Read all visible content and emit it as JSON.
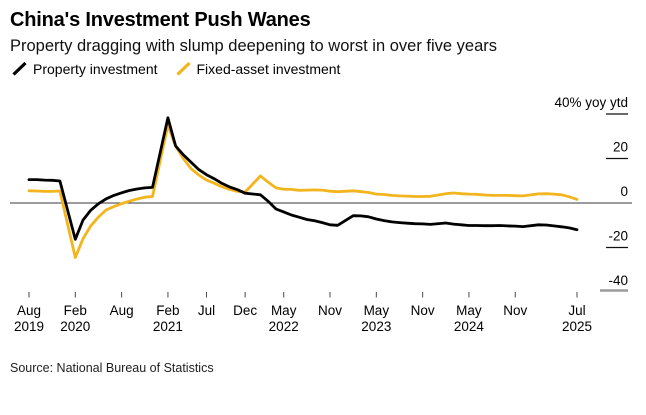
{
  "header": {
    "title": "China's Investment Push Wanes",
    "subtitle": "Property dragging with slump deepening to worst in over five years"
  },
  "legend": [
    {
      "label": "Property investment",
      "color": "#000000",
      "icon": "slash-line-icon"
    },
    {
      "label": "Fixed-asset investment",
      "color": "#F2B51D",
      "icon": "slash-line-icon"
    }
  ],
  "footer": {
    "source": "Source: National Bureau of Statistics"
  },
  "colors": {
    "series_black": "#000000",
    "series_yellow": "#F2B51D",
    "zero_axis": "#3a3a3a",
    "tick_black": "#111111",
    "tick_gray": "#9b9b9b",
    "background": "#ffffff"
  },
  "chart_data": {
    "type": "line",
    "title": "China's Investment Push Wanes",
    "subtitle": "Property dragging with slump deepening to worst in over five years",
    "unit_label": "40% yoy ytd",
    "ylabel": "% yoy ytd",
    "xlabel": "",
    "ylim": [
      -45,
      45
    ],
    "grid": false,
    "legend_position": "top-left",
    "yticks": [
      {
        "value": 40,
        "label": "40% yoy ytd"
      },
      {
        "value": 20,
        "label": "20"
      },
      {
        "value": 0,
        "label": "0"
      },
      {
        "value": -20,
        "label": "-20"
      },
      {
        "value": -40,
        "label": "-40"
      }
    ],
    "xticks": [
      {
        "date": "Aug 2019",
        "month": "Aug",
        "year": "2019"
      },
      {
        "date": "Feb 2020",
        "month": "Feb",
        "year": "2020"
      },
      {
        "date": "Aug 2020",
        "month": "Aug",
        "year": ""
      },
      {
        "date": "Feb 2021",
        "month": "Feb",
        "year": "2021"
      },
      {
        "date": "Jul 2021",
        "month": "Jul",
        "year": ""
      },
      {
        "date": "Dec 2021",
        "month": "Dec",
        "year": ""
      },
      {
        "date": "May 2022",
        "month": "May",
        "year": "2022"
      },
      {
        "date": "Nov 2022",
        "month": "Nov",
        "year": ""
      },
      {
        "date": "May 2023",
        "month": "May",
        "year": "2023"
      },
      {
        "date": "Nov 2023",
        "month": "Nov",
        "year": ""
      },
      {
        "date": "May 2024",
        "month": "May",
        "year": "2024"
      },
      {
        "date": "Nov 2024",
        "month": "Nov",
        "year": ""
      },
      {
        "date": "Jul 2025",
        "month": "Jul",
        "year": "2025"
      }
    ],
    "x_dates": [
      "Aug 2019",
      "Sep 2019",
      "Oct 2019",
      "Nov 2019",
      "Dec 2019",
      "Feb 2020",
      "Mar 2020",
      "Apr 2020",
      "May 2020",
      "Jun 2020",
      "Jul 2020",
      "Aug 2020",
      "Sep 2020",
      "Oct 2020",
      "Nov 2020",
      "Dec 2020",
      "Feb 2021",
      "Mar 2021",
      "Apr 2021",
      "May 2021",
      "Jun 2021",
      "Jul 2021",
      "Aug 2021",
      "Sep 2021",
      "Oct 2021",
      "Nov 2021",
      "Dec 2021",
      "Feb 2022",
      "Mar 2022",
      "Apr 2022",
      "May 2022",
      "Jun 2022",
      "Jul 2022",
      "Aug 2022",
      "Sep 2022",
      "Oct 2022",
      "Nov 2022",
      "Dec 2022",
      "Feb 2023",
      "Mar 2023",
      "Apr 2023",
      "May 2023",
      "Jun 2023",
      "Jul 2023",
      "Aug 2023",
      "Sep 2023",
      "Oct 2023",
      "Nov 2023",
      "Dec 2023",
      "Feb 2024",
      "Mar 2024",
      "Apr 2024",
      "May 2024",
      "Jun 2024",
      "Jul 2024",
      "Aug 2024",
      "Sep 2024",
      "Oct 2024",
      "Nov 2024",
      "Dec 2024",
      "Feb 2025",
      "Mar 2025",
      "Apr 2025",
      "May 2025",
      "Jun 2025",
      "Jul 2025"
    ],
    "series": [
      {
        "name": "Property investment",
        "color": "#000000",
        "values": [
          10.5,
          10.5,
          10.3,
          10.2,
          9.9,
          -16.3,
          -7.7,
          -3.3,
          -0.3,
          1.9,
          3.4,
          4.6,
          5.6,
          6.3,
          6.8,
          7.0,
          38.3,
          25.6,
          21.6,
          18.3,
          15.0,
          12.7,
          10.9,
          8.8,
          7.2,
          6.0,
          4.4,
          3.7,
          0.7,
          -2.7,
          -4.0,
          -5.4,
          -6.4,
          -7.4,
          -8.0,
          -8.8,
          -9.8,
          -10.0,
          -5.7,
          -5.8,
          -6.2,
          -7.2,
          -7.9,
          -8.5,
          -8.8,
          -9.1,
          -9.3,
          -9.4,
          -9.6,
          -9.0,
          -9.5,
          -9.8,
          -10.1,
          -10.1,
          -10.2,
          -10.2,
          -10.1,
          -10.3,
          -10.4,
          -10.6,
          -9.8,
          -9.9,
          -10.3,
          -10.7,
          -11.2,
          -12.0
        ]
      },
      {
        "name": "Fixed-asset investment",
        "color": "#F2B51D",
        "values": [
          5.5,
          5.4,
          5.2,
          5.2,
          5.4,
          -24.5,
          -16.1,
          -10.3,
          -6.3,
          -3.1,
          -1.6,
          -0.3,
          0.8,
          1.8,
          2.6,
          2.9,
          35.0,
          25.6,
          19.9,
          15.4,
          12.6,
          10.3,
          8.9,
          7.3,
          6.1,
          5.2,
          4.9,
          12.2,
          9.3,
          6.8,
          6.2,
          6.1,
          5.7,
          5.8,
          5.9,
          5.8,
          5.3,
          5.1,
          5.5,
          5.1,
          4.7,
          4.0,
          3.8,
          3.4,
          3.2,
          3.1,
          2.9,
          2.9,
          3.0,
          4.2,
          4.5,
          4.2,
          4.0,
          3.9,
          3.6,
          3.4,
          3.4,
          3.4,
          3.3,
          3.2,
          4.1,
          4.2,
          4.0,
          3.7,
          2.8,
          1.6
        ]
      }
    ]
  }
}
